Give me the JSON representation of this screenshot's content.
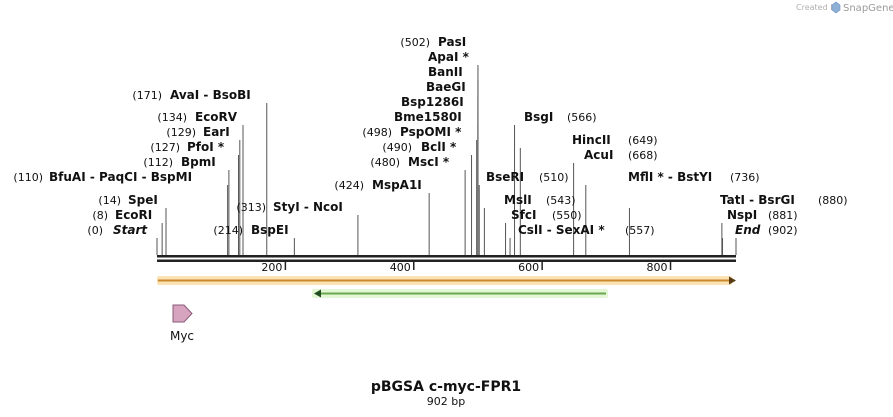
{
  "credit": {
    "prefix": "Created by",
    "brand": "SnapGene",
    "icon": "snapgene-logo-icon"
  },
  "map": {
    "title": "pBGSA c-myc-FPR1",
    "length_label": "902 bp",
    "length": 902,
    "ticks": [
      {
        "value": 200,
        "label": "200"
      },
      {
        "value": 400,
        "label": "400"
      },
      {
        "value": 600,
        "label": "600"
      },
      {
        "value": 800,
        "label": "800"
      }
    ],
    "sites": [
      {
        "text": "(0)",
        "name": "Start",
        "pos": 0
      },
      {
        "text": "(8)",
        "name": "EcoRI",
        "pos": 8
      },
      {
        "text": "(14)",
        "name": "SpeI",
        "pos": 14
      },
      {
        "text": "(110)",
        "name": "BfuAI - PaqCI - BspMI",
        "pos": 110
      },
      {
        "text": "(112)",
        "name": "BpmI",
        "pos": 112
      },
      {
        "text": "(127)",
        "name": "PfoI *",
        "pos": 127
      },
      {
        "text": "(129)",
        "name": "EarI",
        "pos": 129
      },
      {
        "text": "(134)",
        "name": "EcoRV",
        "pos": 134
      },
      {
        "text": "(171)",
        "name": "AvaI - BsoBI",
        "pos": 171
      },
      {
        "text": "(214)",
        "name": "BspEI",
        "pos": 214
      },
      {
        "text": "(313)",
        "name": "StyI - NcoI",
        "pos": 313
      },
      {
        "text": "(424)",
        "name": "MspA1I",
        "pos": 424
      },
      {
        "text": "(480)",
        "name": "MscI *",
        "pos": 480
      },
      {
        "text": "(490)",
        "name": "BclI *",
        "pos": 490
      },
      {
        "text": "(498)",
        "name": "PspOMI *",
        "pos": 498
      },
      {
        "text": "",
        "name": "Bme1580I",
        "pos": 500
      },
      {
        "text": "",
        "name": "Bsp1286I",
        "pos": 500
      },
      {
        "text": "",
        "name": "BaeGI",
        "pos": 500
      },
      {
        "text": "",
        "name": "BanII",
        "pos": 500
      },
      {
        "text": "",
        "name": "ApaI *",
        "pos": 500
      },
      {
        "text": "(502)",
        "name": "PasI",
        "pos": 502
      },
      {
        "text": "(510)",
        "name": "BseRI",
        "pos": 510
      },
      {
        "text": "(543)",
        "name": "MslI",
        "pos": 543
      },
      {
        "text": "(550)",
        "name": "SfcI",
        "pos": 550
      },
      {
        "text": "(557)",
        "name": "CslI - SexAI *",
        "pos": 557
      },
      {
        "text": "(566)",
        "name": "BsgI",
        "pos": 566
      },
      {
        "text": "(649)",
        "name": "HincII",
        "pos": 649
      },
      {
        "text": "(668)",
        "name": "AcuI",
        "pos": 668
      },
      {
        "text": "(736)",
        "name": "MflI * - BstYI",
        "pos": 736
      },
      {
        "text": "(880)",
        "name": "TatI - BsrGI",
        "pos": 880
      },
      {
        "text": "(881)",
        "name": "NspI",
        "pos": 881
      },
      {
        "text": "(902)",
        "name": "End",
        "pos": 902
      }
    ],
    "features": [
      {
        "name": "Myc",
        "start": 20,
        "end": 50,
        "strand": "+",
        "color": "#d7a4c0",
        "label_visible": true
      },
      {
        "name": "",
        "start": 0,
        "end": 902,
        "strand": "+",
        "color": "#f2a93b",
        "label_visible": false
      },
      {
        "name": "",
        "start": 245,
        "end": 695,
        "strand": "-",
        "color": "#7ed957",
        "label_visible": false
      }
    ]
  }
}
